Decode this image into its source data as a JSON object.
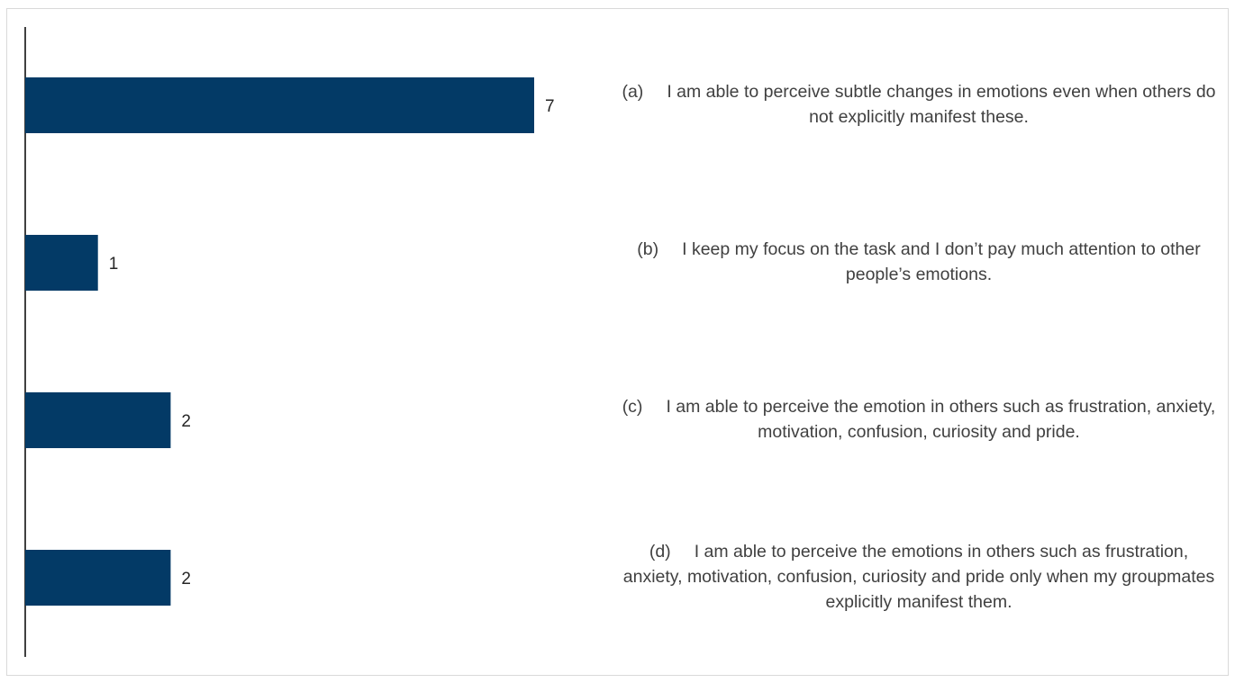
{
  "chart_data": {
    "type": "bar",
    "orientation": "horizontal",
    "categories": [
      "(a)",
      "(b)",
      "(c)",
      "(d)"
    ],
    "values": [
      7,
      1,
      2,
      2
    ],
    "bar_color": "#033a66",
    "axis_color": "#000000",
    "label_color": "#262626",
    "data_labels": true,
    "grid": false,
    "xlim": [
      0,
      8
    ]
  },
  "statements": [
    {
      "letter": "(a)",
      "text": "I am able to perceive subtle changes in emotions even when others do not explicitly manifest these."
    },
    {
      "letter": "(b)",
      "text": "I keep my focus on the task and I don’t pay much attention to other people’s emotions."
    },
    {
      "letter": "(c)",
      "text": "I am able to perceive the emotion in others such as frustration, anxiety, motivation, confusion, curiosity and pride."
    },
    {
      "letter": "(d)",
      "text": "I am able to perceive the emotions in others such as frustration, anxiety, motivation, confusion, curiosity and pride only when my groupmates explicitly manifest them."
    }
  ]
}
